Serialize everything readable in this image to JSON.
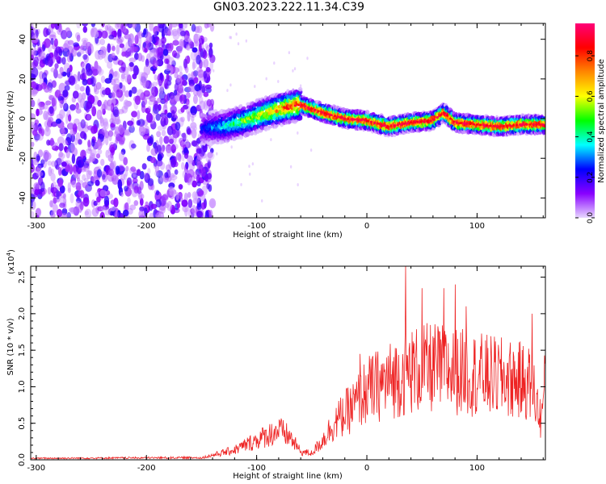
{
  "title": "GN03.2023.222.11.34.C39",
  "chart_data": [
    {
      "type": "heatmap",
      "xlabel": "Height of straight line (km)",
      "ylabel": "Frequency (Hz)",
      "xlim": [
        -305,
        162
      ],
      "ylim": [
        -50,
        48
      ],
      "x_ticks": [
        -300,
        -200,
        -100,
        0,
        100
      ],
      "y_ticks": [
        -40,
        -20,
        0,
        20,
        40
      ],
      "colorbar": {
        "label": "Normalized spectral amplitude",
        "ticks": [
          "0.0",
          "0.2",
          "0.4",
          "0.6",
          "0.8"
        ],
        "range": [
          0,
          0.96
        ],
        "colormap": [
          "#e8d8ff",
          "#8800ff",
          "#0000ff",
          "#00ffff",
          "#00ff00",
          "#ffff00",
          "#ff8800",
          "#ff0000",
          "#ff0077"
        ]
      },
      "ridge": {
        "x": [
          -150,
          -130,
          -110,
          -90,
          -70,
          -60,
          -50,
          -40,
          -20,
          0,
          20,
          40,
          60,
          70,
          80,
          100,
          120,
          140,
          160
        ],
        "y": [
          -5,
          -4,
          -1,
          3,
          6,
          7,
          5,
          3,
          0,
          -1,
          -4,
          -2,
          -1,
          3,
          -2,
          -3,
          -4,
          -3,
          -3
        ]
      },
      "noise_region_x": [
        -305,
        -140
      ]
    },
    {
      "type": "line",
      "xlabel": "Height of straight line (km)",
      "ylabel": "SNR (10 * v/v)",
      "scale_label": "(x10",
      "scale_exp": "4",
      "scale_close": ")",
      "xlim": [
        -305,
        162
      ],
      "ylim": [
        0,
        2.65
      ],
      "x_ticks": [
        -300,
        -200,
        -100,
        0,
        100
      ],
      "y_ticks": [
        "0.0",
        "0.5",
        "1.0",
        "1.5",
        "2.0",
        "2.5"
      ],
      "series": [
        {
          "color": "#ee2222",
          "envelope": {
            "x": [
              -305,
              -150,
              -120,
              -100,
              -80,
              -70,
              -60,
              -50,
              -40,
              -30,
              -20,
              -10,
              0,
              20,
              40,
              60,
              80,
              100,
              120,
              140,
              150,
              158,
              162
            ],
            "y": [
              0.02,
              0.03,
              0.15,
              0.3,
              0.45,
              0.35,
              0.12,
              0.1,
              0.3,
              0.55,
              0.7,
              0.85,
              1.05,
              1.2,
              1.35,
              1.4,
              1.35,
              1.3,
              1.25,
              1.2,
              1.15,
              0.6,
              1.2
            ]
          },
          "peaks": [
            [
              35,
              2.65
            ],
            [
              50,
              2.35
            ],
            [
              70,
              2.35
            ],
            [
              80,
              2.4
            ],
            [
              -6,
              1.45
            ],
            [
              90,
              2.1
            ],
            [
              150,
              2.0
            ]
          ]
        }
      ]
    }
  ]
}
